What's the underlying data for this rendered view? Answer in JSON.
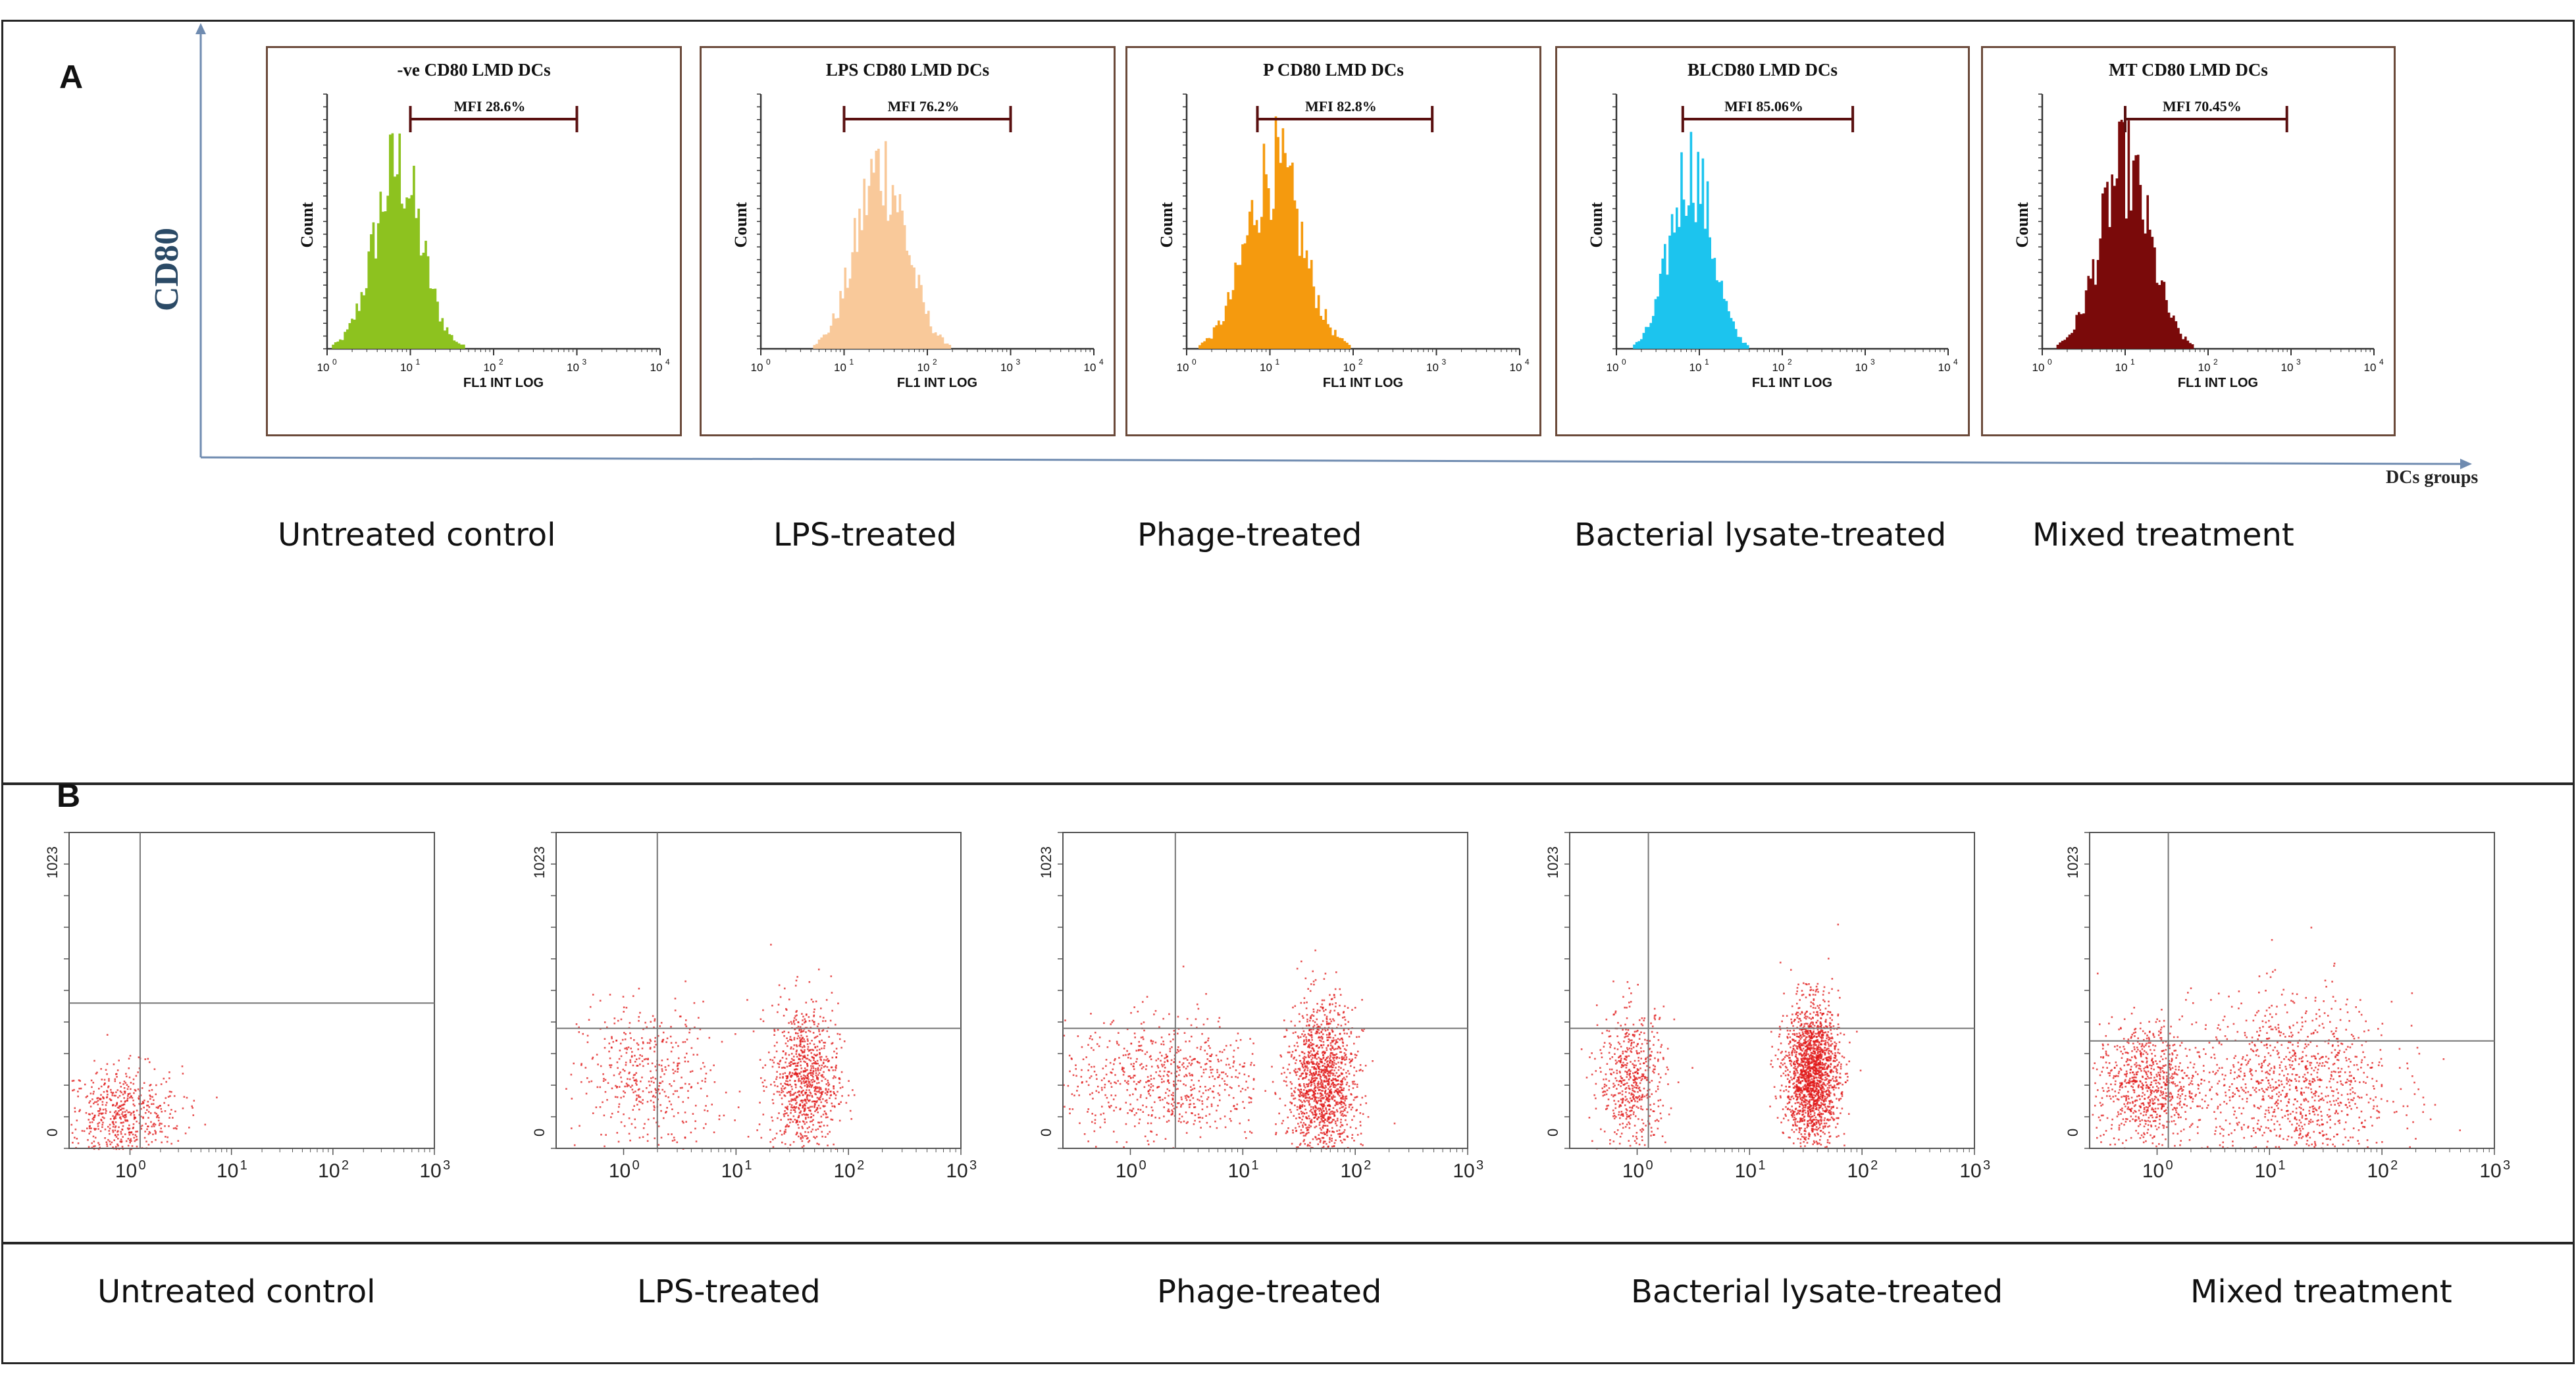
{
  "colors": {
    "hist": [
      "#8dc21f",
      "#f9c99a",
      "#f59a0e",
      "#1cc4ee",
      "#7a0a0a"
    ],
    "gate": "#5a1010",
    "dots": "#e01818"
  },
  "panel_a": {
    "letter": "A",
    "y_axis_label": "CD80",
    "x_axis_label": "DCs groups",
    "captions": [
      "Untreated control",
      "LPS-treated",
      "Phage-treated",
      "Bacterial lysate-treated",
      "Mixed treatment"
    ]
  },
  "panel_b": {
    "letter": "B",
    "captions": [
      "Untreated control",
      "LPS-treated",
      "Phage-treated",
      "Bacterial lysate-treated",
      "Mixed treatment"
    ]
  },
  "chart_data": [
    {
      "type": "histogram",
      "title": "-ve CD80 LMD DCs",
      "xlabel": "FL1 INT LOG",
      "ylabel": "Count",
      "x_ticks": [
        "10",
        "10",
        "10",
        "10",
        "10"
      ],
      "x_tick_exponents": [
        "0",
        "1",
        "2",
        "3",
        "4"
      ],
      "xlim_log10": [
        0,
        4
      ],
      "gate_label": "MFI 28.6%",
      "gate_range_log10": [
        1.0,
        3.0
      ],
      "peak_log10": 0.85,
      "spread_log10": 0.28
    },
    {
      "type": "histogram",
      "title": "LPS CD80 LMD DCs",
      "xlabel": "FL1 INT LOG",
      "ylabel": "Count",
      "x_ticks": [
        "10",
        "10",
        "10",
        "10",
        "10"
      ],
      "x_tick_exponents": [
        "0",
        "1",
        "2",
        "3",
        "4"
      ],
      "xlim_log10": [
        0,
        4
      ],
      "gate_label": "MFI 76.2%",
      "gate_range_log10": [
        1.0,
        3.0
      ],
      "peak_log10": 1.45,
      "spread_log10": 0.3
    },
    {
      "type": "histogram",
      "title": "P  CD80 LMD DCs",
      "xlabel": "FL1 INT LOG",
      "ylabel": "Count",
      "x_ticks": [
        "10",
        "10",
        "10",
        "10",
        "10"
      ],
      "x_tick_exponents": [
        "0",
        "1",
        "2",
        "3",
        "4"
      ],
      "xlim_log10": [
        0,
        4
      ],
      "gate_label": "MFI 82.8%",
      "gate_range_log10": [
        0.85,
        2.95
      ],
      "peak_log10": 1.05,
      "spread_log10": 0.33
    },
    {
      "type": "histogram",
      "title": "BLCD80 LMD DCs",
      "xlabel": "FL1 INT LOG",
      "ylabel": "Count",
      "x_ticks": [
        "10",
        "10",
        "10",
        "10",
        "10"
      ],
      "x_tick_exponents": [
        "0",
        "1",
        "2",
        "3",
        "4"
      ],
      "xlim_log10": [
        0,
        4
      ],
      "gate_label": "MFI 85.06%",
      "gate_range_log10": [
        0.8,
        2.85
      ],
      "peak_log10": 0.9,
      "spread_log10": 0.25
    },
    {
      "type": "histogram",
      "title": "MT  CD80 LMD DCs",
      "xlabel": "FL1 INT LOG",
      "ylabel": "Count",
      "x_ticks": [
        "10",
        "10",
        "10",
        "10",
        "10"
      ],
      "x_tick_exponents": [
        "0",
        "1",
        "2",
        "3",
        "4"
      ],
      "xlim_log10": [
        0,
        4
      ],
      "gate_label": "MFI 70.45%",
      "gate_range_log10": [
        1.0,
        2.95
      ],
      "peak_log10": 1.0,
      "spread_log10": 0.3
    },
    {
      "type": "scatter",
      "y_ticks": [
        "1023",
        "0"
      ],
      "x_ticks": [
        "10",
        "10",
        "10",
        "10"
      ],
      "x_tick_exponents": [
        "0",
        "1",
        "2",
        "3"
      ],
      "xlim_log10": [
        -0.6,
        3
      ],
      "quadrant_x_log10": 0.1,
      "quadrant_y_fraction": 0.46,
      "clusters": [
        {
          "x_log10": -0.1,
          "y_fraction": 0.1,
          "sx": 0.3,
          "sy": 0.08,
          "n": 600
        }
      ]
    },
    {
      "type": "scatter",
      "y_ticks": [
        "1023",
        "0"
      ],
      "x_ticks": [
        "10",
        "10",
        "10",
        "10"
      ],
      "x_tick_exponents": [
        "0",
        "1",
        "2",
        "3"
      ],
      "xlim_log10": [
        -0.6,
        3
      ],
      "quadrant_x_log10": 0.3,
      "quadrant_y_fraction": 0.38,
      "clusters": [
        {
          "x_log10": 0.2,
          "y_fraction": 0.22,
          "sx": 0.3,
          "sy": 0.12,
          "n": 450
        },
        {
          "x_log10": 1.6,
          "y_fraction": 0.22,
          "sx": 0.15,
          "sy": 0.12,
          "n": 900
        }
      ]
    },
    {
      "type": "scatter",
      "y_ticks": [
        "1023",
        "0"
      ],
      "x_ticks": [
        "10",
        "10",
        "10",
        "10"
      ],
      "x_tick_exponents": [
        "0",
        "1",
        "2",
        "3"
      ],
      "xlim_log10": [
        -0.6,
        3
      ],
      "quadrant_x_log10": 0.4,
      "quadrant_y_fraction": 0.38,
      "clusters": [
        {
          "x_log10": 0.3,
          "y_fraction": 0.22,
          "sx": 0.45,
          "sy": 0.1,
          "n": 700
        },
        {
          "x_log10": 1.7,
          "y_fraction": 0.2,
          "sx": 0.15,
          "sy": 0.13,
          "n": 1400
        }
      ]
    },
    {
      "type": "scatter",
      "y_ticks": [
        "1023",
        "0"
      ],
      "x_ticks": [
        "10",
        "10",
        "10",
        "10"
      ],
      "x_tick_exponents": [
        "0",
        "1",
        "2",
        "3"
      ],
      "xlim_log10": [
        -0.6,
        3
      ],
      "quadrant_x_log10": 0.1,
      "quadrant_y_fraction": 0.38,
      "clusters": [
        {
          "x_log10": -0.05,
          "y_fraction": 0.22,
          "sx": 0.15,
          "sy": 0.11,
          "n": 550
        },
        {
          "x_log10": 1.55,
          "y_fraction": 0.24,
          "sx": 0.12,
          "sy": 0.11,
          "n": 1800
        }
      ]
    },
    {
      "type": "scatter",
      "y_ticks": [
        "1023",
        "0"
      ],
      "x_ticks": [
        "10",
        "10",
        "10",
        "10"
      ],
      "x_tick_exponents": [
        "0",
        "1",
        "2",
        "3"
      ],
      "xlim_log10": [
        -0.6,
        3
      ],
      "quadrant_x_log10": 0.1,
      "quadrant_y_fraction": 0.34,
      "clusters": [
        {
          "x_log10": -0.1,
          "y_fraction": 0.2,
          "sx": 0.22,
          "sy": 0.1,
          "n": 800
        },
        {
          "x_log10": 1.2,
          "y_fraction": 0.2,
          "sx": 0.45,
          "sy": 0.14,
          "n": 1100
        }
      ]
    }
  ]
}
